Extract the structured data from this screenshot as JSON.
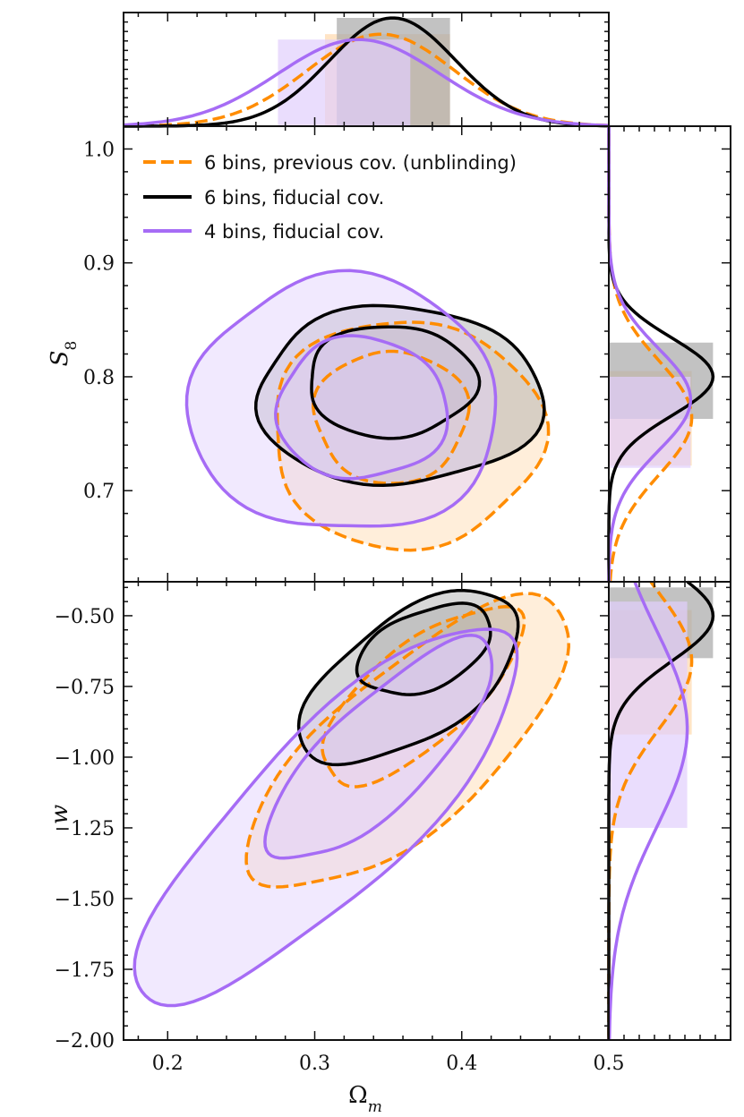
{
  "chart_data": {
    "type": "corner-contour",
    "title": "",
    "xlabel": "Ω",
    "xlabel_sub": "m",
    "ylabel_s8": "S",
    "ylabel_s8_sub": "8",
    "ylabel_w": "w",
    "xlim": [
      0.17,
      0.5
    ],
    "ylim_s8": [
      0.62,
      1.02
    ],
    "ylim_w": [
      -2.0,
      -0.38
    ],
    "xlim_side": [
      0.0,
      1.0
    ],
    "x_ticks": [
      {
        "v": 0.2,
        "label": "0.2"
      },
      {
        "v": 0.3,
        "label": "0.3"
      },
      {
        "v": 0.4,
        "label": "0.4"
      },
      {
        "v": 0.5,
        "label": "0.5"
      }
    ],
    "side_x_ticks": [
      {
        "v": 0.0,
        "label": "0.5"
      }
    ],
    "s8_ticks": [
      {
        "v": 0.7,
        "label": "0.7"
      },
      {
        "v": 0.8,
        "label": "0.8"
      },
      {
        "v": 0.9,
        "label": "0.9"
      },
      {
        "v": 1.0,
        "label": "1.0"
      }
    ],
    "w_ticks": [
      {
        "v": -0.5,
        "label": "−0.50"
      },
      {
        "v": -0.75,
        "label": "−0.75"
      },
      {
        "v": -1.0,
        "label": "−1.00"
      },
      {
        "v": -1.25,
        "label": "−1.25"
      },
      {
        "v": -1.5,
        "label": "−1.50"
      },
      {
        "v": -1.75,
        "label": "−1.75"
      },
      {
        "v": -2.0,
        "label": "−2.00"
      }
    ],
    "legend": [
      {
        "label": "6 bins, previous cov. (unblinding)",
        "color": "#ff8c00",
        "dash": true
      },
      {
        "label": "6 bins, fiducial cov.",
        "color": "#000000",
        "dash": false
      },
      {
        "label": "4 bins, fiducial cov.",
        "color": "#a66cf5",
        "dash": false
      }
    ],
    "series": [
      {
        "name": "6 bins, previous cov. (unblinding)",
        "color": "#ff8c00",
        "fill": "#ffd9ac",
        "dash": true,
        "om_1d": {
          "mean": 0.345,
          "sigma": 0.05,
          "peak": 0.85,
          "band": [
            0.307,
            0.392
          ]
        },
        "s8_1d": {
          "mean": 0.764,
          "sigma": 0.05,
          "peak": 0.74,
          "band": [
            0.722,
            0.805
          ]
        },
        "w_1d": {
          "mean": -0.66,
          "sigma": 0.24,
          "peak": 0.74,
          "band": [
            -0.92,
            -0.48
          ]
        },
        "s8_2d": [
          {
            "cx": 0.352,
            "cy": 0.765,
            "rx": 0.052,
            "ry": 0.058,
            "pos": true
          },
          {
            "cx": 0.362,
            "cy": 0.75,
            "rx": 0.092,
            "ry": 0.1,
            "pos": true
          }
        ],
        "w_2d": [
          {
            "cx": 0.372,
            "cy": -0.78,
            "a": 0.34,
            "b": 0.045,
            "ang": 0.42,
            "pos": true
          },
          {
            "cx": 0.365,
            "cy": -0.96,
            "a": 0.56,
            "b": 0.07,
            "ang": 0.42,
            "pos": true
          }
        ]
      },
      {
        "name": "6 bins, fiducial cov.",
        "color": "#000000",
        "fill": "#a8a8a8",
        "dash": false,
        "om_1d": {
          "mean": 0.353,
          "sigma": 0.043,
          "peak": 1.0,
          "band": [
            0.315,
            0.392
          ]
        },
        "s8_1d": {
          "mean": 0.8,
          "sigma": 0.034,
          "peak": 0.93,
          "band": [
            0.763,
            0.83
          ]
        },
        "w_1d": {
          "mean": -0.5,
          "sigma": 0.16,
          "peak": 0.93,
          "band": [
            -0.65,
            -0.4
          ]
        },
        "s8_2d": [
          {
            "cx": 0.352,
            "cy": 0.796,
            "rx": 0.057,
            "ry": 0.049,
            "pos": true
          },
          {
            "cx": 0.357,
            "cy": 0.783,
            "rx": 0.097,
            "ry": 0.078,
            "pos": true
          }
        ],
        "w_2d": [
          {
            "cx": 0.375,
            "cy": -0.62,
            "a": 0.17,
            "b": 0.04,
            "ang": 0.42,
            "pos": true
          },
          {
            "cx": 0.365,
            "cy": -0.72,
            "a": 0.33,
            "b": 0.058,
            "ang": 0.42,
            "pos": true
          }
        ]
      },
      {
        "name": "4 bins, fiducial cov.",
        "color": "#a66cf5",
        "fill": "#e1cffc",
        "dash": false,
        "om_1d": {
          "mean": 0.33,
          "sigma": 0.055,
          "peak": 0.8,
          "band": [
            0.275,
            0.365
          ]
        },
        "s8_1d": {
          "mean": 0.78,
          "sigma": 0.045,
          "peak": 0.73,
          "band": [
            0.72,
            0.8
          ]
        },
        "w_1d": {
          "mean": -0.9,
          "sigma": 0.35,
          "peak": 0.7,
          "band": [
            -1.25,
            -0.45
          ]
        },
        "s8_2d": [
          {
            "cx": 0.332,
            "cy": 0.772,
            "rx": 0.058,
            "ry": 0.062,
            "pos": true
          },
          {
            "cx": 0.32,
            "cy": 0.775,
            "rx": 0.105,
            "ry": 0.112,
            "pos": true
          }
        ],
        "w_2d": [
          {
            "cx": 0.345,
            "cy": -0.98,
            "a": 0.42,
            "b": 0.045,
            "ang": 0.38,
            "pos": true
          },
          {
            "cx": 0.31,
            "cy": -1.2,
            "a": 0.72,
            "b": 0.07,
            "ang": 0.4,
            "pos": true
          }
        ]
      }
    ]
  }
}
